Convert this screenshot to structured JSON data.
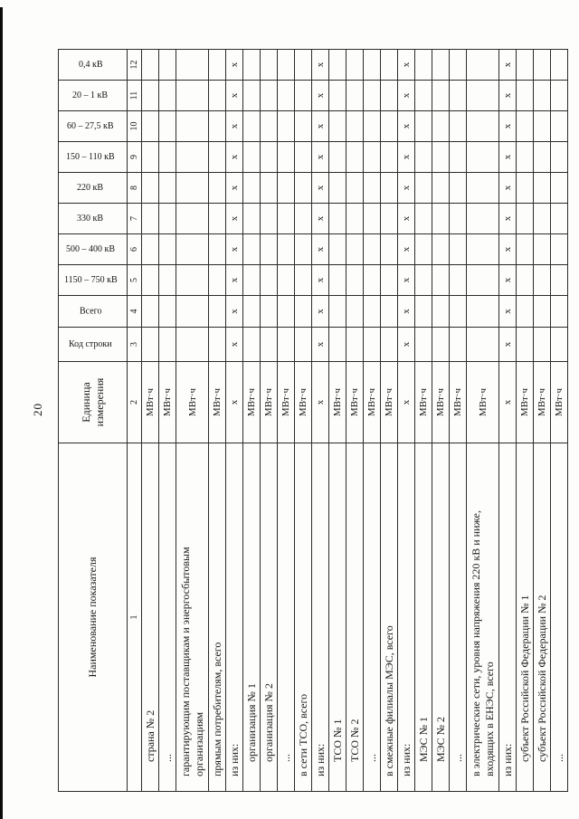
{
  "page": {
    "number": "20"
  },
  "table": {
    "columns": [
      {
        "label": "Наименование показателя",
        "num": "1"
      },
      {
        "label": "Единица измерения",
        "num": "2"
      },
      {
        "label": "Код строки",
        "num": "3"
      },
      {
        "label": "Всего",
        "num": "4"
      },
      {
        "label": "1150 – 750 кВ",
        "num": "5"
      },
      {
        "label": "500 – 400 кВ",
        "num": "6"
      },
      {
        "label": "330 кВ",
        "num": "7"
      },
      {
        "label": "220 кВ",
        "num": "8"
      },
      {
        "label": "150 – 110 кВ",
        "num": "9"
      },
      {
        "label": "60 – 27,5 кВ",
        "num": "10"
      },
      {
        "label": "20 – 1 кВ",
        "num": "11"
      },
      {
        "label": "0,4 кВ",
        "num": "12"
      }
    ],
    "rows": [
      {
        "name": "страна № 2",
        "unit": "МВт·ч",
        "indent": 2,
        "cells": [
          "",
          "",
          "",
          "",
          "",
          "",
          "",
          "",
          "",
          ""
        ]
      },
      {
        "name": "...",
        "unit": "МВт·ч",
        "indent": 2,
        "cells": [
          "",
          "",
          "",
          "",
          "",
          "",
          "",
          "",
          "",
          ""
        ]
      },
      {
        "name": "гарантирующим поставщикам и энергосбытовым\nорганизациям",
        "unit": "МВт·ч",
        "indent": 1,
        "tall": true,
        "cells": [
          "",
          "",
          "",
          "",
          "",
          "",
          "",
          "",
          "",
          ""
        ]
      },
      {
        "name": "прямым потребителям, всего",
        "unit": "МВт·ч",
        "indent": 1,
        "cells": [
          "",
          "",
          "",
          "",
          "",
          "",
          "",
          "",
          "",
          ""
        ]
      },
      {
        "name": "из них:",
        "unit": "x",
        "indent": 1,
        "cells": [
          "x",
          "x",
          "x",
          "x",
          "x",
          "x",
          "x",
          "x",
          "x",
          "x"
        ]
      },
      {
        "name": "организация № 1",
        "unit": "МВт·ч",
        "indent": 2,
        "cells": [
          "",
          "",
          "",
          "",
          "",
          "",
          "",
          "",
          "",
          ""
        ]
      },
      {
        "name": "организация № 2",
        "unit": "МВт·ч",
        "indent": 2,
        "cells": [
          "",
          "",
          "",
          "",
          "",
          "",
          "",
          "",
          "",
          ""
        ]
      },
      {
        "name": "...",
        "unit": "МВт·ч",
        "indent": 2,
        "cells": [
          "",
          "",
          "",
          "",
          "",
          "",
          "",
          "",
          "",
          ""
        ]
      },
      {
        "name": "в сети ТСО, всего",
        "unit": "МВт·ч",
        "indent": 1,
        "cells": [
          "",
          "",
          "",
          "",
          "",
          "",
          "",
          "",
          "",
          ""
        ]
      },
      {
        "name": "из них:",
        "unit": "x",
        "indent": 1,
        "cells": [
          "x",
          "x",
          "x",
          "x",
          "x",
          "x",
          "x",
          "x",
          "x",
          "x"
        ]
      },
      {
        "name": "ТСО № 1",
        "unit": "МВт·ч",
        "indent": 2,
        "cells": [
          "",
          "",
          "",
          "",
          "",
          "",
          "",
          "",
          "",
          ""
        ]
      },
      {
        "name": "ТСО № 2",
        "unit": "МВт·ч",
        "indent": 2,
        "cells": [
          "",
          "",
          "",
          "",
          "",
          "",
          "",
          "",
          "",
          ""
        ]
      },
      {
        "name": "...",
        "unit": "МВт·ч",
        "indent": 2,
        "cells": [
          "",
          "",
          "",
          "",
          "",
          "",
          "",
          "",
          "",
          ""
        ]
      },
      {
        "name": "в смежные филиалы МЭС, всего",
        "unit": "МВт·ч",
        "indent": 1,
        "cells": [
          "",
          "",
          "",
          "",
          "",
          "",
          "",
          "",
          "",
          ""
        ]
      },
      {
        "name": "из них:",
        "unit": "x",
        "indent": 1,
        "cells": [
          "x",
          "x",
          "x",
          "x",
          "x",
          "x",
          "x",
          "x",
          "x",
          "x"
        ]
      },
      {
        "name": "МЭС № 1",
        "unit": "МВт·ч",
        "indent": 2,
        "cells": [
          "",
          "",
          "",
          "",
          "",
          "",
          "",
          "",
          "",
          ""
        ]
      },
      {
        "name": "МЭС № 2",
        "unit": "МВт·ч",
        "indent": 2,
        "cells": [
          "",
          "",
          "",
          "",
          "",
          "",
          "",
          "",
          "",
          ""
        ]
      },
      {
        "name": "...",
        "unit": "МВт·ч",
        "indent": 2,
        "cells": [
          "",
          "",
          "",
          "",
          "",
          "",
          "",
          "",
          "",
          ""
        ]
      },
      {
        "name": "в электрические сети, уровня напряжения 220 кВ и ниже,\nвходящих в ЕНЭС, всего",
        "unit": "МВт·ч",
        "indent": 1,
        "tall": true,
        "cells": [
          "",
          "",
          "",
          "",
          "",
          "",
          "",
          "",
          "",
          ""
        ]
      },
      {
        "name": "из них:",
        "unit": "x",
        "indent": 1,
        "cells": [
          "x",
          "x",
          "x",
          "x",
          "x",
          "x",
          "x",
          "x",
          "x",
          "x"
        ]
      },
      {
        "name": "субъект Российской Федерации № 1",
        "unit": "МВт·ч",
        "indent": 2,
        "cells": [
          "",
          "",
          "",
          "",
          "",
          "",
          "",
          "",
          "",
          ""
        ]
      },
      {
        "name": "субъект Российской Федерации № 2",
        "unit": "МВт·ч",
        "indent": 2,
        "cells": [
          "",
          "",
          "",
          "",
          "",
          "",
          "",
          "",
          "",
          ""
        ]
      },
      {
        "name": "...",
        "unit": "МВт·ч",
        "indent": 2,
        "cells": [
          "",
          "",
          "",
          "",
          "",
          "",
          "",
          "",
          "",
          ""
        ]
      }
    ]
  }
}
